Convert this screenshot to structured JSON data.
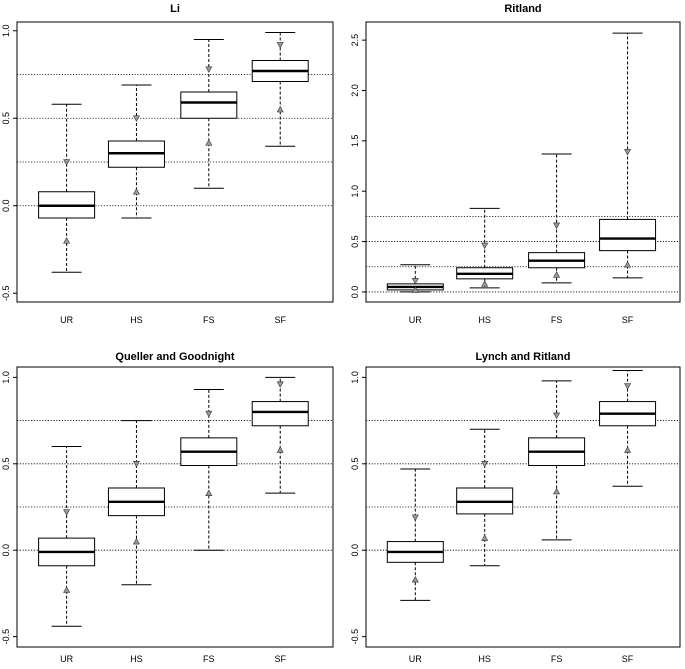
{
  "chart_data": [
    {
      "type": "boxplot",
      "title": "Li",
      "categories": [
        "UR",
        "HS",
        "FS",
        "SF"
      ],
      "ylim": [
        -0.55,
        1.05
      ],
      "yticks": [
        -0.5,
        0.0,
        0.5,
        1.0
      ],
      "ytick_labels": [
        "-0.5",
        "0.0",
        "0.5",
        "1.0"
      ],
      "reference_lines": [
        0.0,
        0.25,
        0.5,
        0.75
      ],
      "boxes": [
        {
          "category": "UR",
          "whisker_low": -0.38,
          "q1": -0.07,
          "median": 0.0,
          "q3": 0.08,
          "whisker_high": 0.58,
          "upper_marker": 0.25,
          "lower_marker": -0.2
        },
        {
          "category": "HS",
          "whisker_low": -0.07,
          "q1": 0.22,
          "median": 0.3,
          "q3": 0.37,
          "whisker_high": 0.69,
          "upper_marker": 0.5,
          "lower_marker": 0.08
        },
        {
          "category": "FS",
          "whisker_low": 0.1,
          "q1": 0.5,
          "median": 0.59,
          "q3": 0.65,
          "whisker_high": 0.95,
          "upper_marker": 0.78,
          "lower_marker": 0.36
        },
        {
          "category": "SF",
          "whisker_low": 0.34,
          "q1": 0.71,
          "median": 0.77,
          "q3": 0.83,
          "whisker_high": 0.99,
          "upper_marker": 0.92,
          "lower_marker": 0.55
        }
      ]
    },
    {
      "type": "boxplot",
      "title": "Ritland",
      "categories": [
        "UR",
        "HS",
        "FS",
        "SF"
      ],
      "ylim": [
        -0.1,
        2.68
      ],
      "yticks": [
        0.0,
        0.5,
        1.0,
        1.5,
        2.0,
        2.5
      ],
      "ytick_labels": [
        "0.0",
        "0.5",
        "1.0",
        "1.5",
        "2.0",
        "2.5"
      ],
      "reference_lines": [
        0.0,
        0.25,
        0.5,
        0.75
      ],
      "boxes": [
        {
          "category": "UR",
          "whisker_low": 0.0,
          "q1": 0.02,
          "median": 0.05,
          "q3": 0.08,
          "whisker_high": 0.27,
          "upper_marker": 0.11,
          "lower_marker": 0.02
        },
        {
          "category": "HS",
          "whisker_low": 0.04,
          "q1": 0.13,
          "median": 0.18,
          "q3": 0.24,
          "whisker_high": 0.83,
          "upper_marker": 0.46,
          "lower_marker": 0.08
        },
        {
          "category": "FS",
          "whisker_low": 0.09,
          "q1": 0.24,
          "median": 0.31,
          "q3": 0.39,
          "whisker_high": 1.37,
          "upper_marker": 0.66,
          "lower_marker": 0.17
        },
        {
          "category": "SF",
          "whisker_low": 0.14,
          "q1": 0.41,
          "median": 0.53,
          "q3": 0.72,
          "whisker_high": 2.57,
          "upper_marker": 1.39,
          "lower_marker": 0.27
        }
      ]
    },
    {
      "type": "boxplot",
      "title": "Queller and Goodnight",
      "categories": [
        "UR",
        "HS",
        "FS",
        "SF"
      ],
      "ylim": [
        -0.56,
        1.06
      ],
      "yticks": [
        -0.5,
        0.0,
        0.5,
        1.0
      ],
      "ytick_labels": [
        "-0.5",
        "0.0",
        "0.5",
        "1.0"
      ],
      "reference_lines": [
        0.0,
        0.25,
        0.5,
        0.75
      ],
      "boxes": [
        {
          "category": "UR",
          "whisker_low": -0.44,
          "q1": -0.09,
          "median": -0.01,
          "q3": 0.07,
          "whisker_high": 0.6,
          "upper_marker": 0.22,
          "lower_marker": -0.23
        },
        {
          "category": "HS",
          "whisker_low": -0.2,
          "q1": 0.2,
          "median": 0.28,
          "q3": 0.36,
          "whisker_high": 0.75,
          "upper_marker": 0.5,
          "lower_marker": 0.05
        },
        {
          "category": "FS",
          "whisker_low": 0.0,
          "q1": 0.49,
          "median": 0.57,
          "q3": 0.65,
          "whisker_high": 0.93,
          "upper_marker": 0.79,
          "lower_marker": 0.33
        },
        {
          "category": "SF",
          "whisker_low": 0.33,
          "q1": 0.72,
          "median": 0.8,
          "q3": 0.86,
          "whisker_high": 1.0,
          "upper_marker": 0.96,
          "lower_marker": 0.58
        }
      ]
    },
    {
      "type": "boxplot",
      "title": "Lynch and Ritland",
      "categories": [
        "UR",
        "HS",
        "FS",
        "SF"
      ],
      "ylim": [
        -0.56,
        1.06
      ],
      "yticks": [
        -0.5,
        0.0,
        0.5,
        1.0
      ],
      "ytick_labels": [
        "-0.5",
        "0.0",
        "0.5",
        "1.0"
      ],
      "reference_lines": [
        0.0,
        0.25,
        0.5,
        0.75
      ],
      "boxes": [
        {
          "category": "UR",
          "whisker_low": -0.29,
          "q1": -0.07,
          "median": -0.01,
          "q3": 0.05,
          "whisker_high": 0.47,
          "upper_marker": 0.19,
          "lower_marker": -0.17
        },
        {
          "category": "HS",
          "whisker_low": -0.09,
          "q1": 0.21,
          "median": 0.28,
          "q3": 0.36,
          "whisker_high": 0.7,
          "upper_marker": 0.5,
          "lower_marker": 0.07
        },
        {
          "category": "FS",
          "whisker_low": 0.06,
          "q1": 0.49,
          "median": 0.57,
          "q3": 0.65,
          "whisker_high": 0.98,
          "upper_marker": 0.78,
          "lower_marker": 0.34
        },
        {
          "category": "SF",
          "whisker_low": 0.37,
          "q1": 0.72,
          "median": 0.79,
          "q3": 0.86,
          "whisker_high": 1.04,
          "upper_marker": 0.95,
          "lower_marker": 0.58
        }
      ]
    }
  ]
}
